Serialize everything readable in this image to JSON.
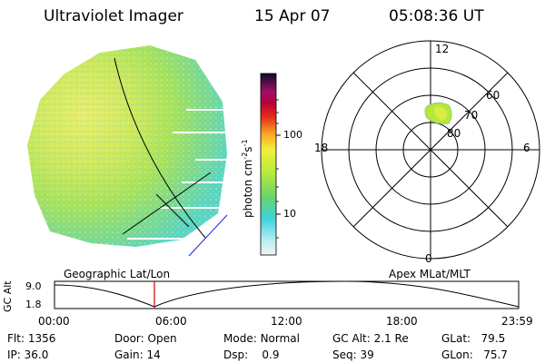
{
  "header": {
    "instrument": "Ultraviolet Imager",
    "date": "15 Apr 07",
    "time": "05:08:36 UT"
  },
  "colorbar": {
    "unit_label": "photon cm",
    "unit_exp1": "-2",
    "unit_s": "s",
    "unit_exp2": "-1",
    "tick_100": "100",
    "tick_10": "10"
  },
  "polar": {
    "mlt_12": "12",
    "mlt_18": "18",
    "mlt_6": "6",
    "mlt_0": "0",
    "lat_60": "60",
    "lat_70": "70",
    "lat_80": "80"
  },
  "timeline": {
    "y_label": "GC Alt",
    "y_top": "9.0",
    "y_bottom": "1.8",
    "left_title": "Geographic Lat/Lon",
    "right_title": "Apex MLat/MLT",
    "ticks": [
      "00:00",
      "06:00",
      "12:00",
      "18:00",
      "23:59"
    ],
    "cursor_time": "05:08:36"
  },
  "info": {
    "flt_label": "Flt:",
    "flt_value": "1356",
    "ip_label": "IP:",
    "ip_value": "36.0",
    "door_label": "Door:",
    "door_value": "Open",
    "gain_label": "Gain:",
    "gain_value": "14",
    "mode_label": "Mode:",
    "mode_value": "Normal",
    "dsp_label": "Dsp:",
    "dsp_value": "0.9",
    "gcalt_label": "GC Alt:",
    "gcalt_value": "2.1 Re",
    "seq_label": "Seq:",
    "seq_value": "39",
    "glat_label": "GLat:",
    "glat_value": "79.5",
    "glon_label": "GLon:",
    "glon_value": "75.7"
  },
  "colors": {
    "accent_red": "#cc0000",
    "nadir_line": "#2222cc"
  }
}
